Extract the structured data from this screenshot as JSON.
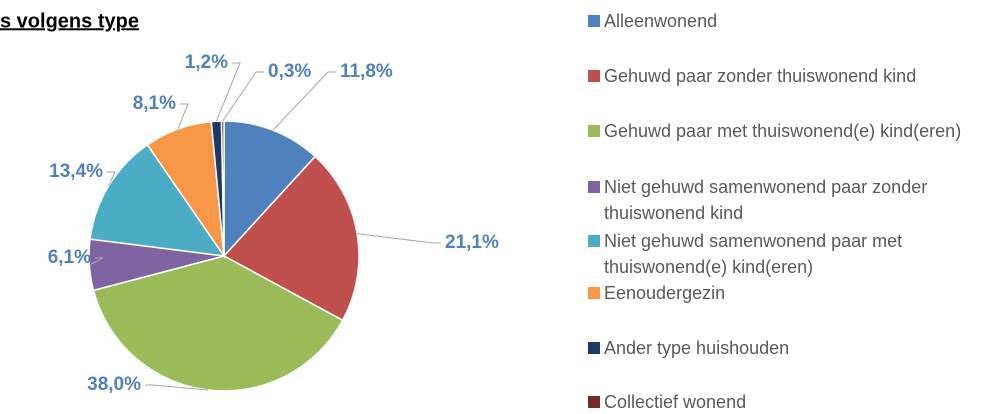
{
  "chart_data": {
    "type": "pie",
    "title": "s volgens type",
    "categories": [
      "Alleenwonend",
      "Gehuwd paar zonder thuiswonend kind",
      "Gehuwd paar met thuiswonend(e) kind(eren)",
      "Niet gehuwd samenwonend paar zonder thuiswonend kind",
      "Niet gehuwd samenwonend paar met thuiswonend(e) kind(eren)",
      "Eenoudergezin",
      "Ander type huishouden",
      "Collectief wonend"
    ],
    "values": [
      11.8,
      21.1,
      38.0,
      6.1,
      13.4,
      8.1,
      1.2,
      0.3
    ],
    "value_labels": [
      "11,8%",
      "21,1%",
      "38,0%",
      "6,1%",
      "13,4%",
      "8,1%",
      "1,2%",
      "0,3%"
    ],
    "colors": [
      "#4f81bd",
      "#c0504d",
      "#9bbb59",
      "#8064a2",
      "#4bacc6",
      "#f79646",
      "#1f3864",
      "#772c2a"
    ],
    "legend": "right"
  }
}
